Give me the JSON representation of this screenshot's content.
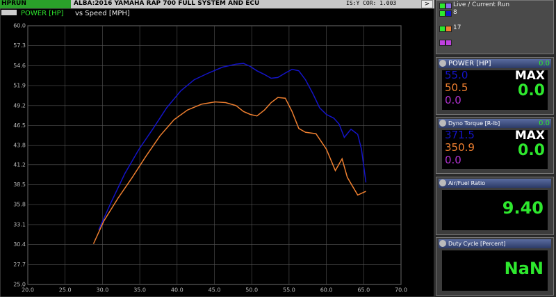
{
  "header": {
    "run": "HPRUN",
    "title": "ALBA:2016 YAMAHA RAP 700 FULL SYSTEM AND ECU",
    "status": "IS:Y COR: 1.003",
    "button": ">"
  },
  "chart_data": {
    "type": "line",
    "title": "POWER [HP]",
    "subtitle": "vs Speed [MPH]",
    "live_label": "Live / Current Run",
    "xlim": [
      20,
      70
    ],
    "xticks": [
      {
        "value": 20,
        "label": "20.0"
      },
      {
        "value": 25,
        "label": "25.0"
      },
      {
        "value": 30,
        "label": "30.0"
      },
      {
        "value": 35,
        "label": "35.0"
      },
      {
        "value": 40,
        "label": "40.0"
      },
      {
        "value": 45,
        "label": "45.0"
      },
      {
        "value": 50,
        "label": "50.0"
      },
      {
        "value": 55,
        "label": "55.0"
      },
      {
        "value": 60,
        "label": "60.0"
      },
      {
        "value": 65,
        "label": "65.0"
      },
      {
        "value": 70,
        "label": "70.0"
      }
    ],
    "ylim": [
      25,
      60
    ],
    "yticks": [
      {
        "value": 25,
        "label": "25.0"
      },
      27.7,
      30.4,
      33.1,
      35.8,
      38.5,
      41.2,
      43.8,
      46.5,
      49.2,
      51.9,
      54.6,
      57.3,
      {
        "value": 60,
        "label": "60.0"
      }
    ],
    "grid": true,
    "series": [
      {
        "name": "8",
        "color": "#1414c8",
        "x": [
          29.5,
          31.2,
          33.0,
          34.9,
          36.8,
          38.6,
          40.5,
          42.3,
          44.2,
          46.1,
          47.9,
          48.9,
          49.8,
          50.7,
          51.7,
          52.6,
          53.5,
          54.5,
          55.4,
          56.3,
          57.2,
          58.2,
          59.1,
          60.0,
          61.0,
          61.7,
          62.4,
          63.3,
          64.2,
          64.7,
          65.3
        ],
        "values": [
          32.4,
          36.2,
          40.0,
          43.3,
          46.1,
          48.9,
          51.2,
          52.7,
          53.6,
          54.4,
          54.8,
          54.9,
          54.5,
          53.9,
          53.4,
          52.9,
          53.0,
          53.6,
          54.1,
          53.9,
          52.7,
          50.8,
          48.9,
          48.0,
          47.5,
          46.7,
          44.9,
          46.0,
          45.3,
          43.3,
          38.8
        ]
      },
      {
        "name": "17",
        "color": "#f08030",
        "x": [
          28.8,
          30.2,
          32.1,
          34.0,
          35.8,
          37.7,
          39.6,
          41.4,
          43.3,
          45.1,
          46.5,
          47.9,
          48.9,
          49.8,
          50.7,
          51.7,
          52.6,
          53.5,
          54.5,
          55.4,
          56.3,
          57.2,
          58.6,
          60.0,
          61.2,
          62.1,
          62.8,
          64.2,
          65.3
        ],
        "values": [
          30.5,
          33.6,
          36.7,
          39.5,
          42.3,
          45.1,
          47.3,
          48.6,
          49.4,
          49.7,
          49.6,
          49.2,
          48.4,
          48.0,
          47.8,
          48.6,
          49.6,
          50.3,
          50.2,
          48.4,
          46.1,
          45.6,
          45.4,
          43.3,
          40.4,
          42.0,
          39.5,
          37.1,
          37.6
        ]
      }
    ]
  },
  "gauges": [
    {
      "title": "POWER [HP]",
      "current": "0.0",
      "values": [
        "55.0",
        "50.5",
        "0.0"
      ],
      "max_label": "MAX",
      "max": "0.0"
    },
    {
      "title": "Dyno Torque [R-lb]",
      "current": "0.0",
      "values": [
        "371.5",
        "350.9",
        "0.0"
      ],
      "max_label": "MAX",
      "max": "0.0"
    },
    {
      "title": "Air/Fuel Ratio",
      "reading": "9.40"
    },
    {
      "title": "Duty Cycle [Percent]",
      "reading": "NaN"
    }
  ]
}
